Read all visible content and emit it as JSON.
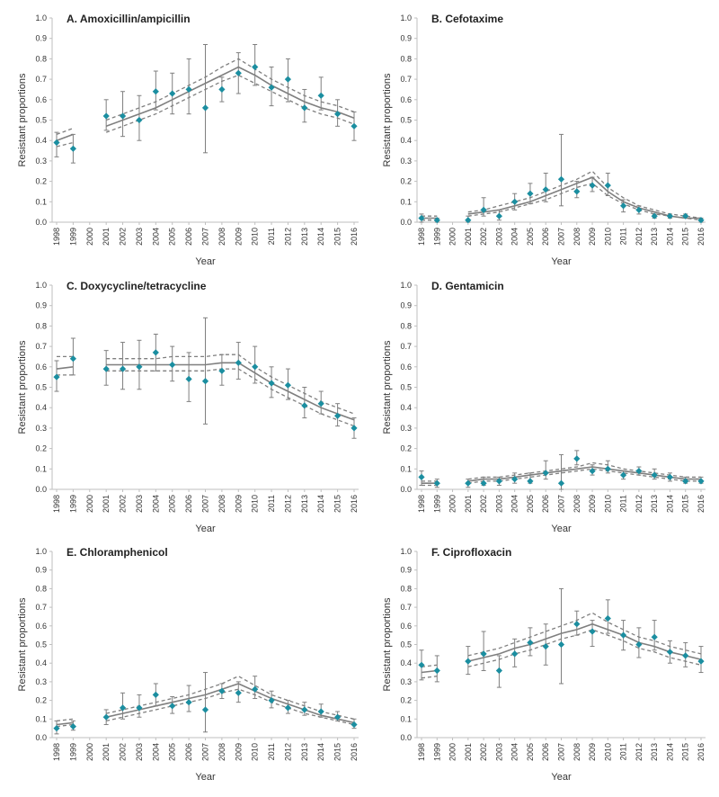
{
  "figure": {
    "colors": {
      "point": "#1b8ea0",
      "trend": "#7f7f7f",
      "ci": "#7f7f7f",
      "errorbar": "#7f7f7f",
      "axis": "#bfbfbf"
    }
  },
  "chart_data": [
    {
      "type": "scatter",
      "title": "A. Amoxicillin/ampicillin",
      "xlabel": "Year",
      "ylabel": "Resistant proportions",
      "ylim": [
        0,
        1.0
      ],
      "yticks": [
        "0.0",
        "0.1",
        "0.2",
        "0.3",
        "0.4",
        "0.5",
        "0.6",
        "0.7",
        "0.8",
        "0.9",
        "1.0"
      ],
      "x": [
        "1998",
        "1999",
        "2000",
        "2001",
        "2002",
        "2003",
        "2004",
        "2005",
        "2006",
        "2007",
        "2008",
        "2009",
        "2010",
        "2011",
        "2012",
        "2013",
        "2014",
        "2015",
        "2016"
      ],
      "series": [
        {
          "values": [
            0.39,
            0.36,
            null,
            0.52,
            0.52,
            0.5,
            0.64,
            0.63,
            0.65,
            0.56,
            0.65,
            0.73,
            0.76,
            0.66,
            0.7,
            0.56,
            0.62,
            0.53,
            0.47
          ]
        },
        {
          "values": [
            0.32,
            0.29,
            null,
            0.45,
            0.42,
            0.4,
            0.55,
            0.53,
            0.53,
            0.34,
            0.59,
            0.63,
            0.67,
            0.57,
            0.59,
            0.49,
            0.55,
            0.47,
            0.4
          ]
        },
        {
          "values": [
            0.44,
            0.43,
            null,
            0.6,
            0.64,
            0.62,
            0.74,
            0.73,
            0.8,
            0.87,
            0.71,
            0.83,
            0.87,
            0.76,
            0.8,
            0.65,
            0.71,
            0.6,
            0.54
          ]
        },
        {
          "values": [
            0.4,
            0.43,
            null,
            0.47,
            0.5,
            0.53,
            0.56,
            0.6,
            0.64,
            0.68,
            0.72,
            0.76,
            0.72,
            0.67,
            0.63,
            0.59,
            0.56,
            0.54,
            0.51
          ]
        },
        {
          "values": [
            0.37,
            0.39,
            null,
            0.44,
            0.47,
            0.5,
            0.53,
            0.57,
            0.61,
            0.65,
            0.69,
            0.72,
            0.68,
            0.64,
            0.6,
            0.56,
            0.53,
            0.51,
            0.48
          ]
        },
        {
          "values": [
            0.43,
            0.46,
            null,
            0.5,
            0.53,
            0.56,
            0.59,
            0.63,
            0.67,
            0.71,
            0.76,
            0.8,
            0.75,
            0.7,
            0.66,
            0.62,
            0.59,
            0.57,
            0.54
          ]
        }
      ]
    },
    {
      "type": "scatter",
      "title": "B. Cefotaxime",
      "xlabel": "Year",
      "ylabel": "Resistant proportions",
      "ylim": [
        0,
        1.0
      ],
      "yticks": [
        "0.0",
        "0.1",
        "0.2",
        "0.3",
        "0.4",
        "0.5",
        "0.6",
        "0.7",
        "0.8",
        "0.9",
        "1.0"
      ],
      "x": [
        "1998",
        "1999",
        "2000",
        "2001",
        "2002",
        "2003",
        "2004",
        "2005",
        "2006",
        "2007",
        "2008",
        "2009",
        "2010",
        "2011",
        "2012",
        "2013",
        "2014",
        "2015",
        "2016"
      ],
      "series": [
        {
          "values": [
            0.02,
            0.01,
            null,
            0.01,
            0.06,
            0.03,
            0.1,
            0.14,
            0.16,
            0.21,
            0.15,
            0.18,
            0.18,
            0.08,
            0.06,
            0.03,
            0.03,
            0.03,
            0.01
          ]
        },
        {
          "values": [
            0.0,
            0.0,
            null,
            0.0,
            0.03,
            0.01,
            0.06,
            0.09,
            0.1,
            0.08,
            0.12,
            0.15,
            0.13,
            0.05,
            0.04,
            0.02,
            0.02,
            0.02,
            0.0
          ]
        },
        {
          "values": [
            0.04,
            0.02,
            null,
            0.03,
            0.12,
            0.06,
            0.14,
            0.19,
            0.24,
            0.43,
            0.2,
            0.22,
            0.24,
            0.11,
            0.08,
            0.04,
            0.04,
            0.04,
            0.02
          ]
        },
        {
          "values": [
            0.02,
            0.02,
            null,
            0.04,
            0.05,
            0.06,
            0.08,
            0.1,
            0.13,
            0.16,
            0.19,
            0.22,
            0.15,
            0.1,
            0.07,
            0.05,
            0.03,
            0.02,
            0.02
          ]
        },
        {
          "values": [
            0.01,
            0.01,
            null,
            0.03,
            0.04,
            0.05,
            0.07,
            0.09,
            0.11,
            0.14,
            0.17,
            0.19,
            0.13,
            0.09,
            0.06,
            0.04,
            0.03,
            0.02,
            0.01
          ]
        },
        {
          "values": [
            0.03,
            0.03,
            null,
            0.05,
            0.06,
            0.08,
            0.1,
            0.12,
            0.15,
            0.18,
            0.21,
            0.25,
            0.17,
            0.12,
            0.08,
            0.06,
            0.04,
            0.03,
            0.02
          ]
        }
      ]
    },
    {
      "type": "scatter",
      "title": "C. Doxycycline/tetracycline",
      "xlabel": "Year",
      "ylabel": "Resistant proportions",
      "ylim": [
        0,
        1.0
      ],
      "yticks": [
        "0.0",
        "0.1",
        "0.2",
        "0.3",
        "0.4",
        "0.5",
        "0.6",
        "0.7",
        "0.8",
        "0.9",
        "1.0"
      ],
      "x": [
        "1998",
        "1999",
        "2000",
        "2001",
        "2002",
        "2003",
        "2004",
        "2005",
        "2006",
        "2007",
        "2008",
        "2009",
        "2010",
        "2011",
        "2012",
        "2013",
        "2014",
        "2015",
        "2016"
      ],
      "series": [
        {
          "values": [
            0.55,
            0.64,
            null,
            0.59,
            0.59,
            0.6,
            0.67,
            0.61,
            0.54,
            0.53,
            0.58,
            0.62,
            0.6,
            0.52,
            0.51,
            0.41,
            0.42,
            0.36,
            0.3
          ]
        },
        {
          "values": [
            0.48,
            0.56,
            null,
            0.51,
            0.49,
            0.49,
            0.58,
            0.53,
            0.43,
            0.32,
            0.51,
            0.54,
            0.52,
            0.45,
            0.44,
            0.35,
            0.37,
            0.31,
            0.25
          ]
        },
        {
          "values": [
            0.63,
            0.74,
            null,
            0.68,
            0.72,
            0.73,
            0.76,
            0.7,
            0.67,
            0.84,
            0.66,
            0.72,
            0.7,
            0.6,
            0.59,
            0.5,
            0.48,
            0.42,
            0.35
          ]
        },
        {
          "values": [
            0.59,
            0.6,
            null,
            0.61,
            0.61,
            0.61,
            0.61,
            0.61,
            0.61,
            0.61,
            0.62,
            0.62,
            0.57,
            0.52,
            0.48,
            0.44,
            0.4,
            0.37,
            0.34
          ]
        },
        {
          "values": [
            0.56,
            0.56,
            null,
            0.58,
            0.58,
            0.58,
            0.58,
            0.58,
            0.58,
            0.58,
            0.59,
            0.59,
            0.54,
            0.49,
            0.45,
            0.41,
            0.37,
            0.34,
            0.31
          ]
        },
        {
          "values": [
            0.65,
            0.65,
            null,
            0.64,
            0.64,
            0.64,
            0.64,
            0.65,
            0.65,
            0.65,
            0.66,
            0.66,
            0.6,
            0.55,
            0.51,
            0.47,
            0.43,
            0.4,
            0.37
          ]
        }
      ]
    },
    {
      "type": "scatter",
      "title": "D. Gentamicin",
      "xlabel": "Year",
      "ylabel": "Resistant proportions",
      "ylim": [
        0,
        1.0
      ],
      "yticks": [
        "0.0",
        "0.1",
        "0.2",
        "0.3",
        "0.4",
        "0.5",
        "0.6",
        "0.7",
        "0.8",
        "0.9",
        "1.0"
      ],
      "x": [
        "1998",
        "1999",
        "2000",
        "2001",
        "2002",
        "2003",
        "2004",
        "2005",
        "2006",
        "2007",
        "2008",
        "2009",
        "2010",
        "2011",
        "2012",
        "2013",
        "2014",
        "2015",
        "2016"
      ],
      "series": [
        {
          "values": [
            0.06,
            0.03,
            null,
            0.03,
            0.03,
            0.04,
            0.05,
            0.04,
            0.08,
            0.03,
            0.15,
            0.09,
            0.1,
            0.07,
            0.09,
            0.07,
            0.06,
            0.04,
            0.04
          ]
        },
        {
          "values": [
            0.02,
            0.01,
            null,
            0.01,
            0.02,
            0.02,
            0.03,
            0.03,
            0.05,
            0.0,
            0.12,
            0.07,
            0.08,
            0.05,
            0.07,
            0.05,
            0.04,
            0.03,
            0.03
          ]
        },
        {
          "values": [
            0.09,
            0.05,
            null,
            0.05,
            0.06,
            0.06,
            0.08,
            0.08,
            0.14,
            0.17,
            0.19,
            0.12,
            0.14,
            0.09,
            0.11,
            0.1,
            0.08,
            0.06,
            0.06
          ]
        },
        {
          "values": [
            0.03,
            0.03,
            null,
            0.04,
            0.05,
            0.05,
            0.06,
            0.07,
            0.08,
            0.09,
            0.1,
            0.11,
            0.1,
            0.09,
            0.08,
            0.07,
            0.06,
            0.05,
            0.05
          ]
        },
        {
          "values": [
            0.02,
            0.02,
            null,
            0.03,
            0.04,
            0.04,
            0.05,
            0.06,
            0.07,
            0.08,
            0.09,
            0.1,
            0.09,
            0.08,
            0.07,
            0.06,
            0.05,
            0.04,
            0.04
          ]
        },
        {
          "values": [
            0.04,
            0.04,
            null,
            0.05,
            0.06,
            0.06,
            0.07,
            0.08,
            0.09,
            0.1,
            0.11,
            0.13,
            0.12,
            0.1,
            0.09,
            0.08,
            0.07,
            0.06,
            0.06
          ]
        }
      ]
    },
    {
      "type": "scatter",
      "title": "E. Chloramphenicol",
      "xlabel": "Year",
      "ylabel": "Resistant proportions",
      "ylim": [
        0,
        1.0
      ],
      "yticks": [
        "0.0",
        "0.1",
        "0.2",
        "0.3",
        "0.4",
        "0.5",
        "0.6",
        "0.7",
        "0.8",
        "0.9",
        "1.0"
      ],
      "x": [
        "1998",
        "1999",
        "2000",
        "2001",
        "2002",
        "2003",
        "2004",
        "2005",
        "2006",
        "2007",
        "2008",
        "2009",
        "2010",
        "2011",
        "2012",
        "2013",
        "2014",
        "2015",
        "2016"
      ],
      "series": [
        {
          "values": [
            0.05,
            0.06,
            null,
            0.11,
            0.16,
            0.16,
            0.23,
            0.17,
            0.19,
            0.15,
            0.25,
            0.24,
            0.26,
            0.2,
            0.16,
            0.15,
            0.14,
            0.11,
            0.07
          ]
        },
        {
          "values": [
            0.02,
            0.04,
            null,
            0.07,
            0.1,
            0.11,
            0.17,
            0.13,
            0.14,
            0.03,
            0.21,
            0.19,
            0.21,
            0.16,
            0.13,
            0.12,
            0.11,
            0.09,
            0.05
          ]
        },
        {
          "values": [
            0.09,
            0.09,
            null,
            0.15,
            0.24,
            0.23,
            0.29,
            0.22,
            0.28,
            0.35,
            0.29,
            0.3,
            0.33,
            0.25,
            0.2,
            0.19,
            0.18,
            0.14,
            0.1
          ]
        },
        {
          "values": [
            0.07,
            0.08,
            null,
            0.11,
            0.13,
            0.15,
            0.17,
            0.19,
            0.21,
            0.23,
            0.26,
            0.29,
            0.25,
            0.21,
            0.18,
            0.15,
            0.12,
            0.1,
            0.08
          ]
        },
        {
          "values": [
            0.06,
            0.07,
            null,
            0.09,
            0.11,
            0.13,
            0.15,
            0.17,
            0.19,
            0.21,
            0.24,
            0.26,
            0.23,
            0.19,
            0.16,
            0.13,
            0.11,
            0.09,
            0.07
          ]
        },
        {
          "values": [
            0.09,
            0.1,
            null,
            0.13,
            0.15,
            0.17,
            0.19,
            0.21,
            0.23,
            0.26,
            0.29,
            0.33,
            0.28,
            0.23,
            0.2,
            0.17,
            0.14,
            0.12,
            0.1
          ]
        }
      ]
    },
    {
      "type": "scatter",
      "title": "F. Ciprofloxacin",
      "xlabel": "Year",
      "ylabel": "Resistant proportions",
      "ylim": [
        0,
        1.0
      ],
      "yticks": [
        "0.0",
        "0.1",
        "0.2",
        "0.3",
        "0.4",
        "0.5",
        "0.6",
        "0.7",
        "0.8",
        "0.9",
        "1.0"
      ],
      "x": [
        "1998",
        "1999",
        "2000",
        "2001",
        "2002",
        "2003",
        "2004",
        "2005",
        "2006",
        "2007",
        "2008",
        "2009",
        "2010",
        "2011",
        "2012",
        "2013",
        "2014",
        "2015",
        "2016"
      ],
      "series": [
        {
          "values": [
            0.39,
            0.36,
            null,
            0.41,
            0.45,
            0.36,
            0.45,
            0.51,
            0.49,
            0.5,
            0.61,
            0.57,
            0.64,
            0.55,
            0.5,
            0.54,
            0.46,
            0.44,
            0.41
          ]
        },
        {
          "values": [
            0.31,
            0.3,
            null,
            0.34,
            0.36,
            0.27,
            0.38,
            0.44,
            0.39,
            0.29,
            0.55,
            0.49,
            0.56,
            0.47,
            0.43,
            0.47,
            0.4,
            0.38,
            0.35
          ]
        },
        {
          "values": [
            0.47,
            0.44,
            null,
            0.49,
            0.57,
            0.44,
            0.53,
            0.59,
            0.61,
            0.8,
            0.68,
            0.63,
            0.74,
            0.63,
            0.59,
            0.63,
            0.52,
            0.51,
            0.49
          ]
        },
        {
          "values": [
            0.35,
            0.36,
            null,
            0.41,
            0.43,
            0.45,
            0.48,
            0.5,
            0.53,
            0.56,
            0.58,
            0.61,
            0.58,
            0.55,
            0.51,
            0.49,
            0.46,
            0.44,
            0.42
          ]
        },
        {
          "values": [
            0.32,
            0.33,
            null,
            0.38,
            0.4,
            0.42,
            0.45,
            0.47,
            0.5,
            0.53,
            0.55,
            0.58,
            0.55,
            0.52,
            0.48,
            0.46,
            0.43,
            0.41,
            0.39
          ]
        },
        {
          "values": [
            0.38,
            0.39,
            null,
            0.44,
            0.46,
            0.48,
            0.51,
            0.54,
            0.57,
            0.6,
            0.63,
            0.67,
            0.62,
            0.58,
            0.54,
            0.52,
            0.49,
            0.47,
            0.45
          ]
        }
      ]
    }
  ]
}
